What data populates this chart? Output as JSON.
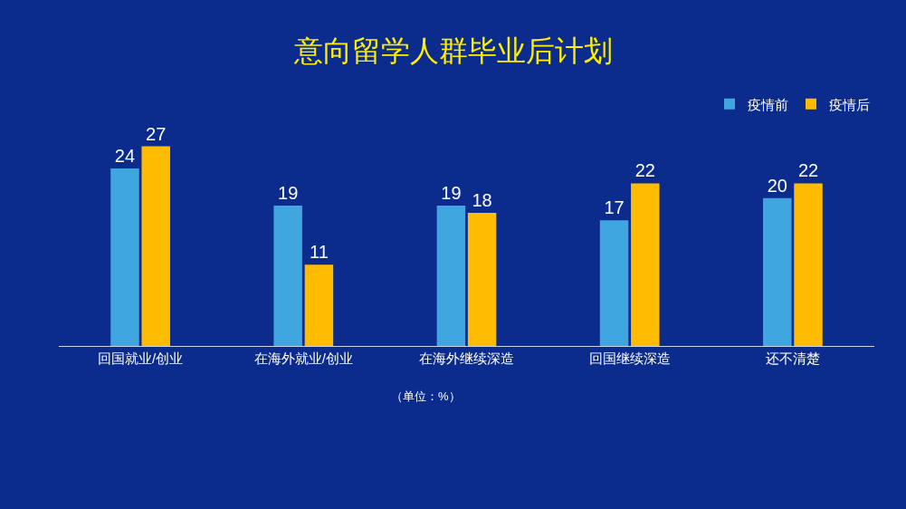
{
  "chart_data": {
    "type": "bar",
    "title": "意向留学人群毕业后计划",
    "categories": [
      "回国就业/创业",
      "在海外就业/创业",
      "在海外继续深造",
      "回国继续深造",
      "还不清楚"
    ],
    "series": [
      {
        "name": "疫情前",
        "color": "#3fa6e0",
        "values": [
          24,
          19,
          19,
          17,
          20
        ]
      },
      {
        "name": "疫情后",
        "color": "#ffbb00",
        "values": [
          27,
          11,
          18,
          22,
          22
        ]
      }
    ],
    "data_labels": true,
    "grid": false,
    "legend": "top right",
    "annotations": [
      "（单位：%）"
    ]
  }
}
